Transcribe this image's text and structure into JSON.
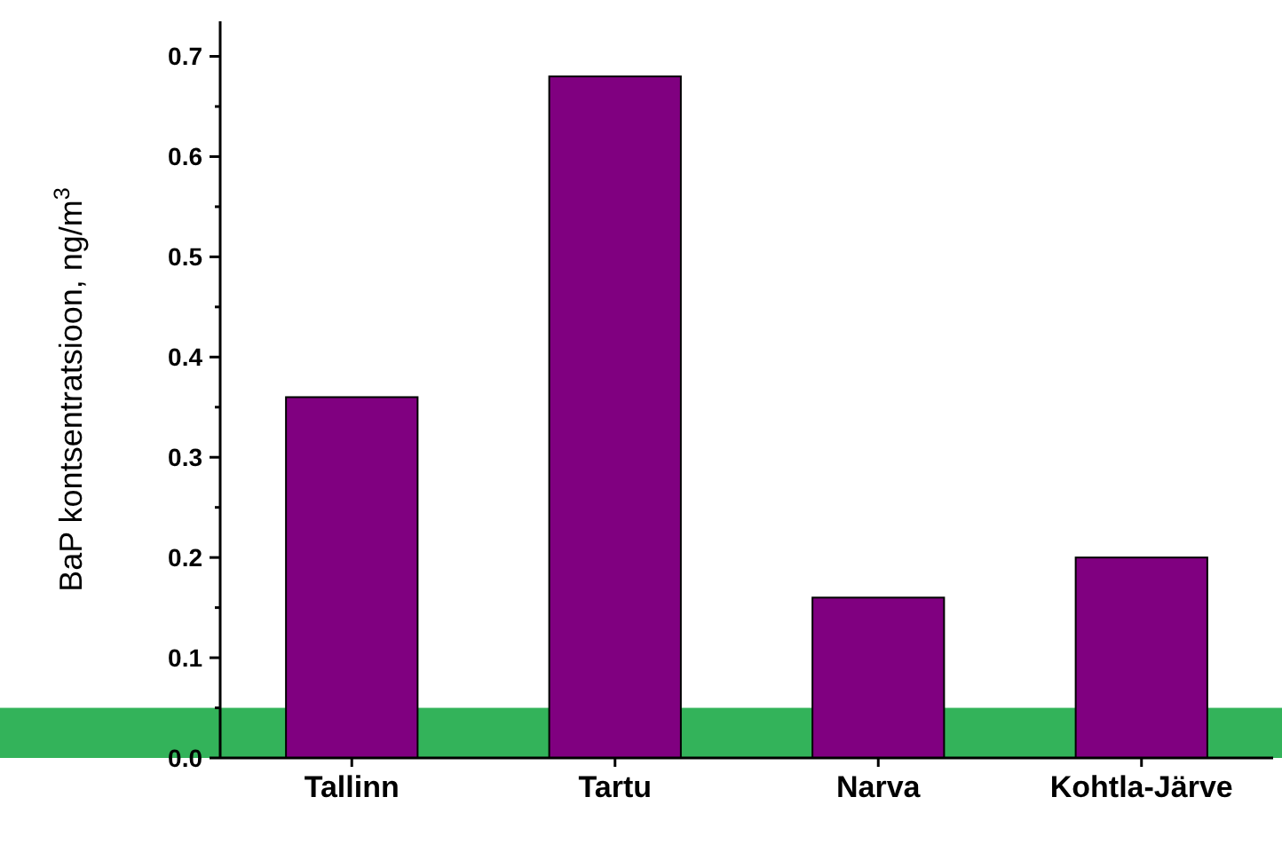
{
  "chart_data": {
    "type": "bar",
    "ylabel": "BaP kontsentratsioon, ng/m$^{3}$",
    "categories": [
      "Tallinn",
      "Tartu",
      "Narva",
      "Kohtla-Järve"
    ],
    "values": [
      0.36,
      0.68,
      0.16,
      0.2
    ],
    "color": "#800080",
    "ylim": [
      0,
      0.735
    ],
    "yticks": [
      {
        "value": 0,
        "label": "0.0"
      },
      0.1,
      0.2,
      0.3,
      0.4,
      0.5,
      0.6,
      0.7
    ],
    "bands": [
      {
        "axis": "y",
        "from": 0,
        "to": 0.05,
        "color": "#33b35a"
      }
    ],
    "grid": false
  }
}
